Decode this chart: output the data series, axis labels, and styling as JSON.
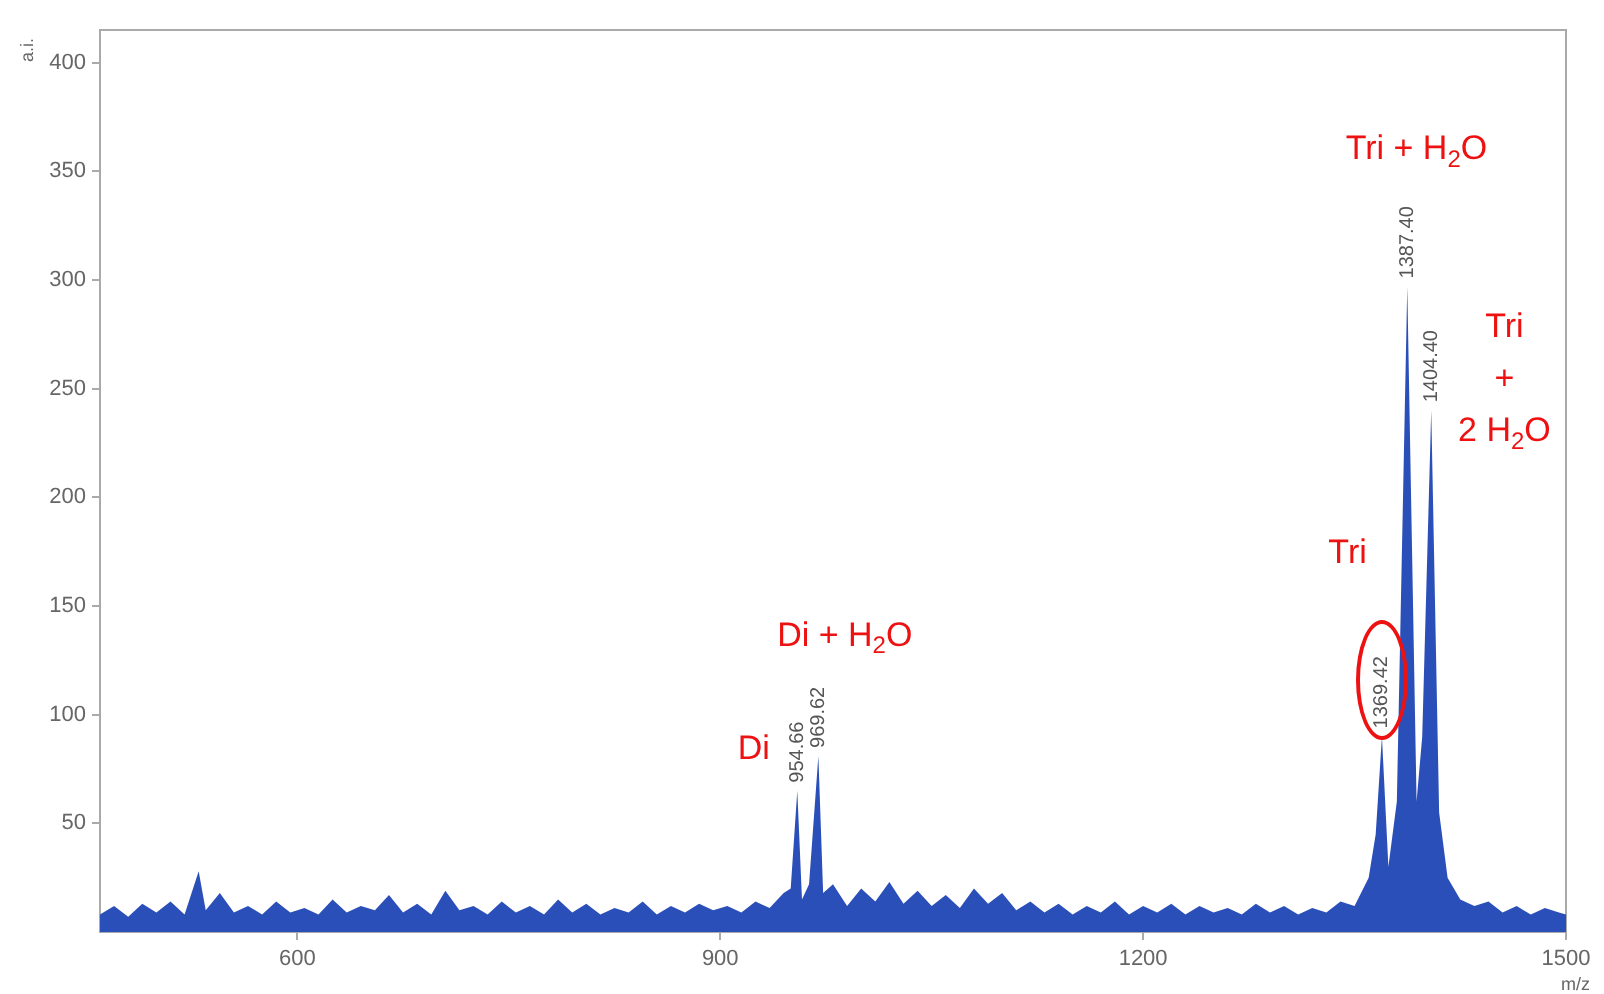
{
  "chart_data": {
    "type": "area",
    "xlabel": "m/z",
    "ylabel": "a.i.",
    "xlim": [
      460,
      1500
    ],
    "ylim": [
      0,
      415
    ],
    "xticks": [
      600,
      900,
      1200,
      1500
    ],
    "yticks": [
      50,
      100,
      150,
      200,
      250,
      300,
      350,
      400
    ],
    "grid": false,
    "legend": false,
    "marker": "none",
    "x": [
      460,
      470,
      480,
      490,
      500,
      510,
      520,
      530,
      535,
      545,
      555,
      565,
      575,
      585,
      595,
      605,
      615,
      625,
      635,
      645,
      655,
      665,
      675,
      685,
      695,
      705,
      715,
      725,
      735,
      745,
      755,
      765,
      775,
      785,
      795,
      805,
      815,
      825,
      835,
      845,
      855,
      865,
      875,
      885,
      895,
      905,
      915,
      925,
      935,
      945,
      950,
      954.66,
      958,
      963,
      969.62,
      973,
      980,
      990,
      1000,
      1010,
      1020,
      1030,
      1040,
      1050,
      1060,
      1070,
      1080,
      1090,
      1100,
      1110,
      1120,
      1130,
      1140,
      1150,
      1160,
      1170,
      1180,
      1190,
      1200,
      1210,
      1220,
      1230,
      1240,
      1250,
      1260,
      1270,
      1280,
      1290,
      1300,
      1310,
      1320,
      1330,
      1340,
      1350,
      1360,
      1365,
      1369.42,
      1374,
      1380,
      1387.4,
      1394,
      1398,
      1404.4,
      1410,
      1416,
      1425,
      1435,
      1445,
      1455,
      1465,
      1475,
      1485,
      1495,
      1500
    ],
    "series": [
      {
        "color": "#2b4fb8",
        "values": [
          8,
          12,
          7,
          13,
          9,
          14,
          8,
          28,
          10,
          18,
          9,
          12,
          8,
          14,
          9,
          11,
          8,
          15,
          9,
          12,
          10,
          17,
          9,
          13,
          8,
          19,
          10,
          12,
          8,
          14,
          9,
          12,
          8,
          15,
          9,
          13,
          8,
          11,
          9,
          14,
          8,
          12,
          9,
          13,
          10,
          12,
          9,
          14,
          11,
          18,
          20,
          65,
          15,
          22,
          81,
          18,
          22,
          12,
          20,
          14,
          23,
          13,
          19,
          12,
          17,
          11,
          20,
          13,
          18,
          10,
          14,
          9,
          13,
          8,
          12,
          9,
          14,
          8,
          12,
          9,
          13,
          8,
          12,
          9,
          11,
          8,
          13,
          9,
          12,
          8,
          11,
          9,
          14,
          12,
          25,
          45,
          90,
          30,
          60,
          297,
          60,
          90,
          240,
          55,
          25,
          15,
          12,
          14,
          9,
          12,
          8,
          11,
          9,
          8
        ],
        "name": null
      }
    ],
    "annotations": [
      {
        "text": "954.66",
        "x": 954.66,
        "y": 65
      },
      {
        "text": "969.62",
        "x": 969.62,
        "y": 81
      },
      {
        "text": "1369.42",
        "x": 1369.42,
        "y": 90
      },
      {
        "text": "1387.40",
        "x": 1387.4,
        "y": 297
      },
      {
        "text": "1404.40",
        "x": 1404.4,
        "y": 240
      },
      "Di",
      "Di + H$_{2}$O",
      "Tri",
      "Tri + H$_{2}$O",
      "Tri\n+\n2 H$_{2}$O"
    ]
  }
}
